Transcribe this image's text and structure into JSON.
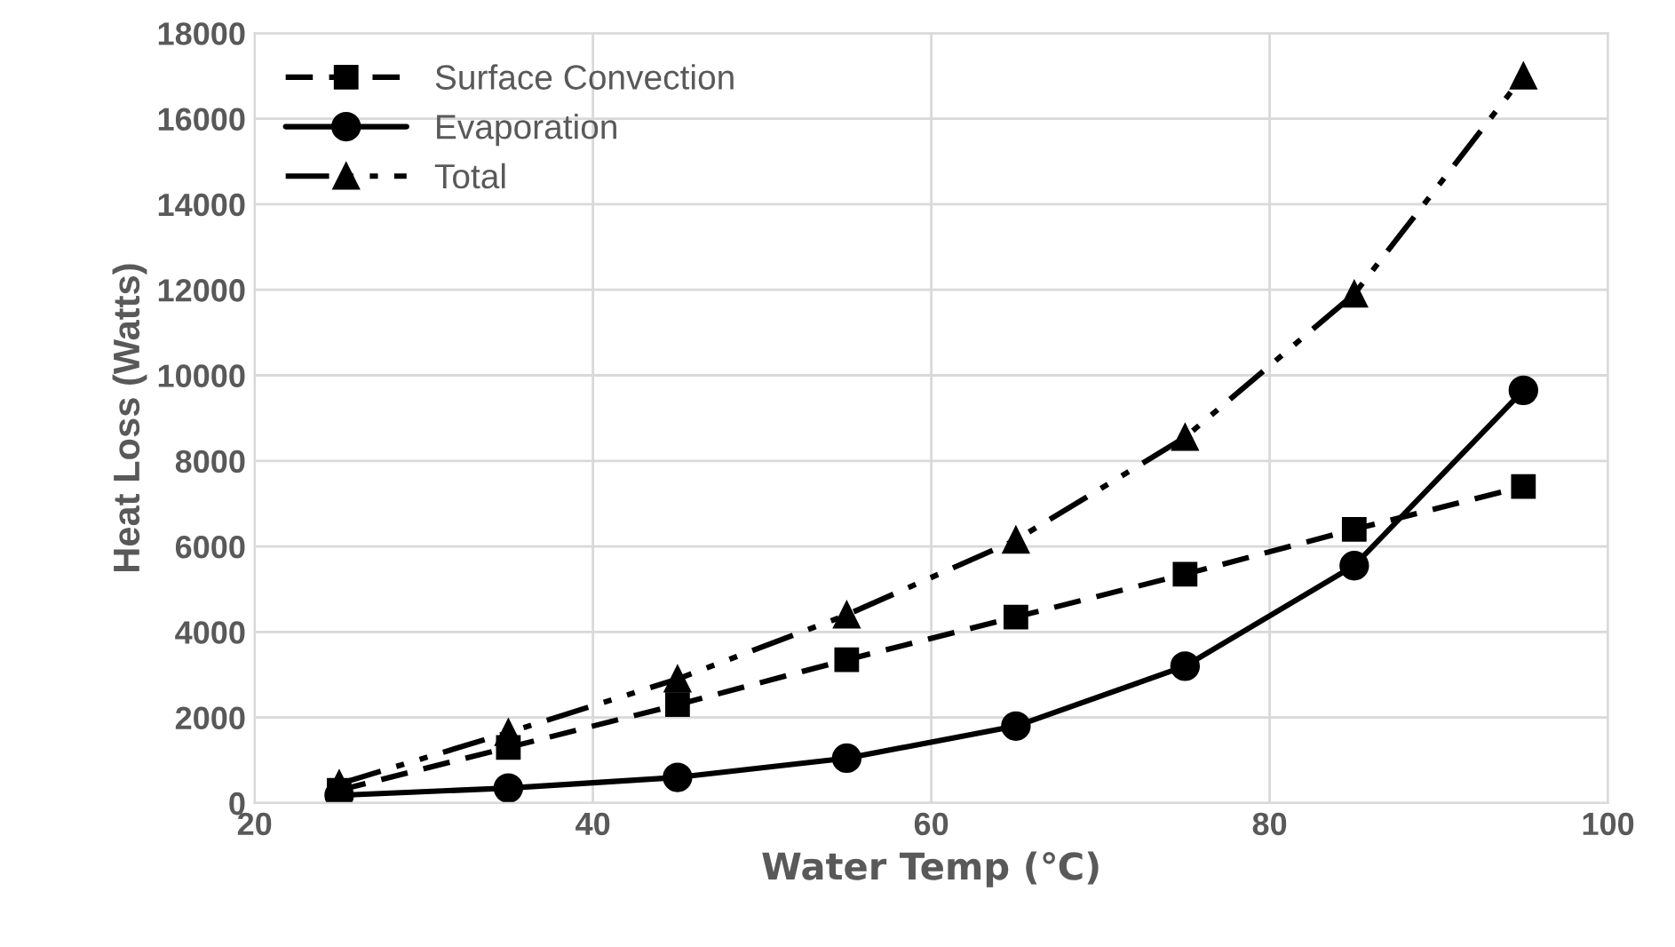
{
  "chart_data": {
    "type": "line",
    "xlabel": "Water Temp (℃)",
    "ylabel": "Heat Loss (Watts)",
    "x": [
      25,
      35,
      45,
      55,
      65,
      75,
      85,
      95
    ],
    "series": [
      {
        "name": "Surface Convection",
        "color": "#000000",
        "marker": "square",
        "line_style": "dashed",
        "values": [
          300,
          1300,
          2300,
          3350,
          4350,
          5350,
          6400,
          7400
        ]
      },
      {
        "name": "Evaporation",
        "color": "#000000",
        "marker": "circle",
        "line_style": "solid",
        "values": [
          180,
          350,
          600,
          1050,
          1800,
          3200,
          5550,
          9650
        ]
      },
      {
        "name": "Total",
        "color": "#000000",
        "marker": "triangle",
        "line_style": "dotted",
        "values": [
          450,
          1650,
          2900,
          4400,
          6150,
          8550,
          11900,
          17000
        ]
      }
    ],
    "xlim": [
      20,
      100
    ],
    "xticks": [
      20,
      40,
      60,
      80,
      100
    ],
    "ylim": [
      0,
      18000
    ],
    "yticks": [
      0,
      2000,
      4000,
      6000,
      8000,
      10000,
      12000,
      14000,
      16000,
      18000
    ],
    "grid": true,
    "legend": "top left"
  }
}
